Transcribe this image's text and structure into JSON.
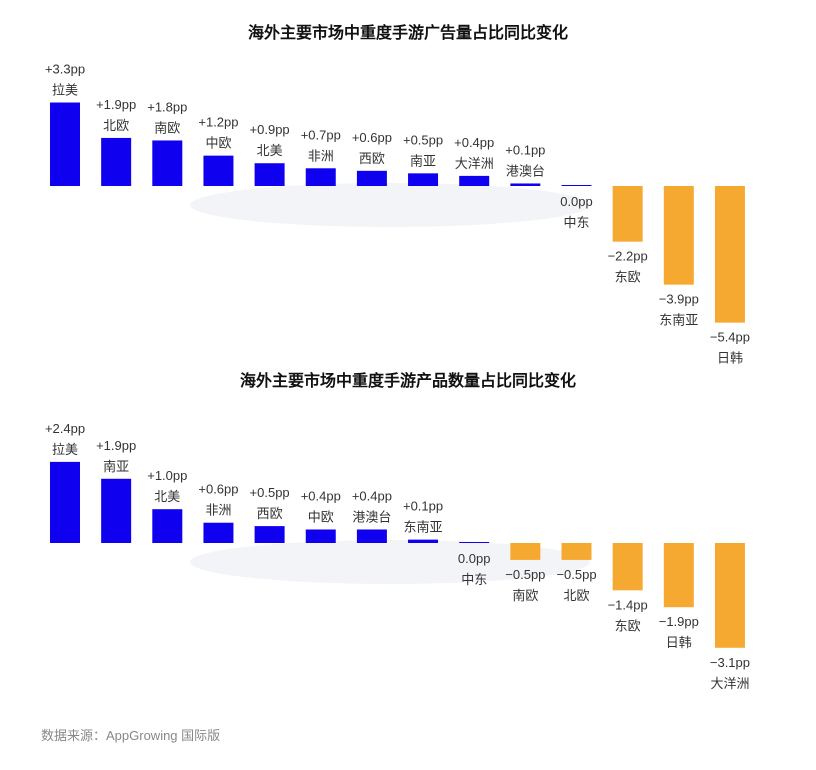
{
  "watermark": "AppGrowing",
  "source": "数据来源：AppGrowing 国际版",
  "colors": {
    "positive": "#1000f0",
    "negative": "#f5a930"
  },
  "chart_data": [
    {
      "type": "bar",
      "title": "海外主要市场中重度手游广告量占比同比变化",
      "unit": "pp",
      "categories": [
        "拉美",
        "北欧",
        "南欧",
        "中欧",
        "北美",
        "非洲",
        "西欧",
        "南亚",
        "大洋洲",
        "港澳台",
        "中东",
        "东欧",
        "东南亚",
        "日韩"
      ],
      "values": [
        3.3,
        1.9,
        1.8,
        1.2,
        0.9,
        0.7,
        0.6,
        0.5,
        0.4,
        0.1,
        0.0,
        -2.2,
        -3.9,
        -5.4
      ],
      "labels": [
        "+3.3pp",
        "+1.9pp",
        "+1.8pp",
        "+1.2pp",
        "+0.9pp",
        "+0.7pp",
        "+0.6pp",
        "+0.5pp",
        "+0.4pp",
        "+0.1pp",
        "0.0pp",
        "−2.2pp",
        "−3.9pp",
        "−5.4pp"
      ]
    },
    {
      "type": "bar",
      "title": "海外主要市场中重度手游产品数量占比同比变化",
      "unit": "pp",
      "categories": [
        "拉美",
        "南亚",
        "北美",
        "非洲",
        "西欧",
        "中欧",
        "港澳台",
        "东南亚",
        "中东",
        "南欧",
        "北欧",
        "东欧",
        "日韩",
        "大洋洲"
      ],
      "values": [
        2.4,
        1.9,
        1.0,
        0.6,
        0.5,
        0.4,
        0.4,
        0.1,
        0.0,
        -0.5,
        -0.5,
        -1.4,
        -1.9,
        -3.1
      ],
      "labels": [
        "+2.4pp",
        "+1.9pp",
        "+1.0pp",
        "+0.6pp",
        "+0.5pp",
        "+0.4pp",
        "+0.4pp",
        "+0.1pp",
        "0.0pp",
        "−0.5pp",
        "−0.5pp",
        "−1.4pp",
        "−1.9pp",
        "−3.1pp"
      ]
    }
  ]
}
